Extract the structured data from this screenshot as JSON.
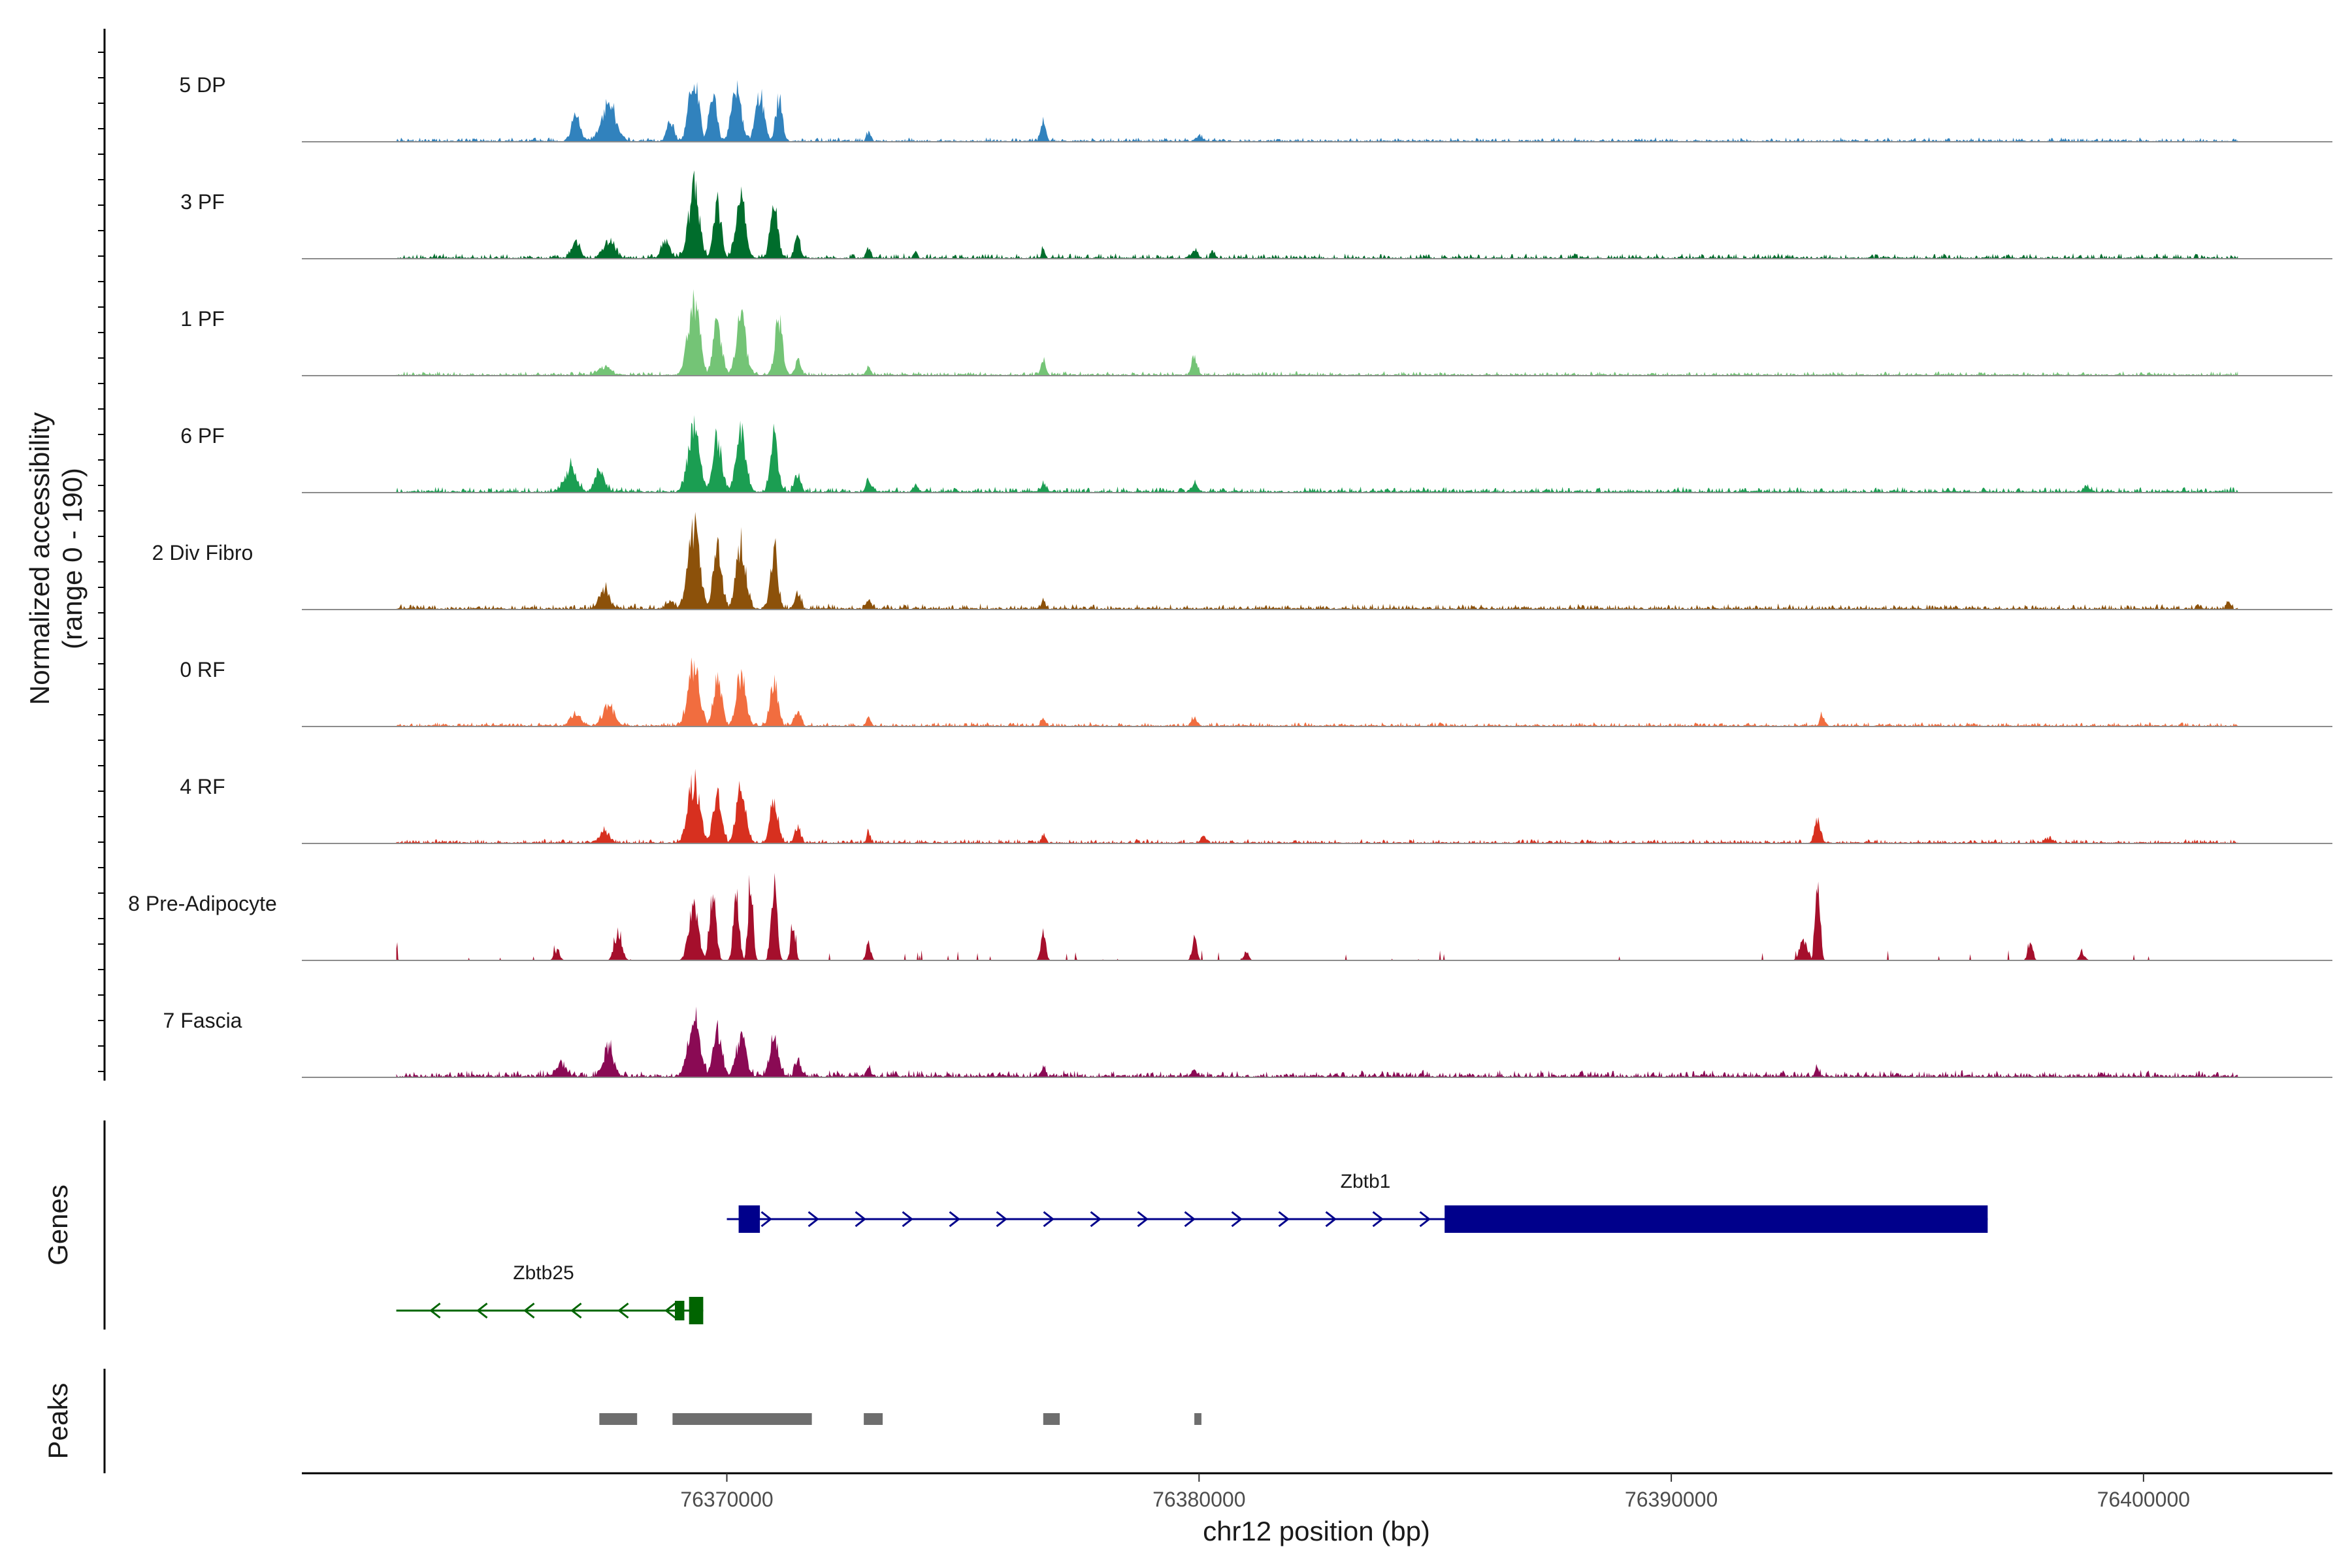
{
  "chart_data": {
    "type": "area",
    "title": "",
    "region": {
      "chromosome": "chr12",
      "start": 76361000,
      "end": 76404000
    },
    "ylabel": "Normalized accessibility",
    "ylabel_range": "(range 0 - 190)",
    "ylim": [
      0,
      190
    ],
    "xlabel": "chr12 position (bp)",
    "xticks": [
      {
        "value": 76370000,
        "label": "76370000"
      },
      {
        "value": 76380000,
        "label": "76380000"
      },
      {
        "value": 76390000,
        "label": "76390000"
      },
      {
        "value": 76400000,
        "label": "76400000"
      }
    ],
    "panel_labels": {
      "genes": "Genes",
      "peaks": "Peaks"
    },
    "signal_start": 76363000,
    "signal_end": 76402000,
    "tracks": [
      {
        "name": "5 DP",
        "color": "#3182bd",
        "peaks": [
          [
            76366800,
            0.32,
            90
          ],
          [
            76367500,
            0.45,
            150
          ],
          [
            76368800,
            0.25,
            70
          ],
          [
            76369300,
            0.82,
            100
          ],
          [
            76369700,
            0.6,
            80
          ],
          [
            76370200,
            0.68,
            100
          ],
          [
            76370700,
            0.58,
            90
          ],
          [
            76371100,
            0.52,
            70
          ],
          [
            76373000,
            0.1,
            40
          ],
          [
            76376700,
            0.25,
            50
          ],
          [
            76380000,
            0.06,
            60
          ]
        ],
        "base": 0.03,
        "noise": 0.03
      },
      {
        "name": "3 PF",
        "color": "#006d2c",
        "peaks": [
          [
            76366800,
            0.2,
            90
          ],
          [
            76367500,
            0.22,
            120
          ],
          [
            76368700,
            0.2,
            90
          ],
          [
            76369300,
            0.85,
            110
          ],
          [
            76369800,
            0.65,
            80
          ],
          [
            76370300,
            0.72,
            100
          ],
          [
            76371000,
            0.6,
            80
          ],
          [
            76371500,
            0.25,
            60
          ],
          [
            76373000,
            0.12,
            50
          ],
          [
            76374000,
            0.07,
            40
          ],
          [
            76376700,
            0.1,
            40
          ],
          [
            76379900,
            0.12,
            60
          ],
          [
            76380300,
            0.08,
            40
          ]
        ],
        "base": 0.03,
        "noise": 0.04
      },
      {
        "name": "1 PF",
        "color": "#74c476",
        "peaks": [
          [
            76367400,
            0.1,
            120
          ],
          [
            76369300,
            0.92,
            120
          ],
          [
            76369800,
            0.62,
            90
          ],
          [
            76370300,
            0.7,
            100
          ],
          [
            76371100,
            0.65,
            80
          ],
          [
            76371500,
            0.18,
            60
          ],
          [
            76373000,
            0.08,
            50
          ],
          [
            76376700,
            0.16,
            50
          ],
          [
            76379900,
            0.22,
            60
          ]
        ],
        "base": 0.03,
        "noise": 0.03
      },
      {
        "name": "6 PF",
        "color": "#1b9e52",
        "peaks": [
          [
            76366700,
            0.3,
            120
          ],
          [
            76367300,
            0.25,
            100
          ],
          [
            76369300,
            0.78,
            120
          ],
          [
            76369800,
            0.62,
            90
          ],
          [
            76370300,
            0.72,
            100
          ],
          [
            76371000,
            0.65,
            80
          ],
          [
            76371500,
            0.22,
            60
          ],
          [
            76373000,
            0.12,
            50
          ],
          [
            76374000,
            0.08,
            40
          ],
          [
            76376700,
            0.1,
            40
          ],
          [
            76379900,
            0.1,
            60
          ],
          [
            76398800,
            0.07,
            60
          ]
        ],
        "base": 0.04,
        "noise": 0.04
      },
      {
        "name": "2 Div Fibro",
        "color": "#8c510a",
        "peaks": [
          [
            76367400,
            0.25,
            100
          ],
          [
            76368800,
            0.1,
            80
          ],
          [
            76369300,
            0.95,
            120
          ],
          [
            76369800,
            0.72,
            90
          ],
          [
            76370300,
            0.8,
            100
          ],
          [
            76371000,
            0.7,
            80
          ],
          [
            76371500,
            0.2,
            60
          ],
          [
            76373000,
            0.1,
            50
          ],
          [
            76376700,
            0.1,
            40
          ],
          [
            76401800,
            0.08,
            40
          ]
        ],
        "base": 0.04,
        "noise": 0.04
      },
      {
        "name": "0 RF",
        "color": "#f16d3f",
        "peaks": [
          [
            76366800,
            0.15,
            100
          ],
          [
            76367500,
            0.25,
            120
          ],
          [
            76369300,
            0.72,
            120
          ],
          [
            76369800,
            0.55,
            90
          ],
          [
            76370300,
            0.62,
            100
          ],
          [
            76371000,
            0.55,
            80
          ],
          [
            76371500,
            0.18,
            60
          ],
          [
            76373000,
            0.1,
            50
          ],
          [
            76376700,
            0.1,
            40
          ],
          [
            76379900,
            0.1,
            60
          ],
          [
            76393200,
            0.12,
            50
          ]
        ],
        "base": 0.03,
        "noise": 0.03
      },
      {
        "name": "4 RF",
        "color": "#d7301f",
        "peaks": [
          [
            76367400,
            0.14,
            100
          ],
          [
            76369300,
            0.75,
            120
          ],
          [
            76369800,
            0.58,
            90
          ],
          [
            76370300,
            0.65,
            100
          ],
          [
            76371000,
            0.58,
            80
          ],
          [
            76371500,
            0.2,
            60
          ],
          [
            76373000,
            0.12,
            40
          ],
          [
            76376700,
            0.1,
            40
          ],
          [
            76380100,
            0.08,
            60
          ],
          [
            76393100,
            0.3,
            60
          ],
          [
            76398000,
            0.05,
            80
          ]
        ],
        "base": 0.03,
        "noise": 0.03
      },
      {
        "name": "8 Pre-Adipocyte",
        "color": "#a50f2c",
        "peaks": [
          [
            76363000,
            0.15,
            20
          ],
          [
            76366400,
            0.12,
            60
          ],
          [
            76367700,
            0.35,
            80
          ],
          [
            76369300,
            0.7,
            100
          ],
          [
            76369700,
            0.8,
            70
          ],
          [
            76370200,
            0.75,
            60
          ],
          [
            76370500,
            0.98,
            50
          ],
          [
            76371000,
            0.85,
            60
          ],
          [
            76371400,
            0.4,
            50
          ],
          [
            76373000,
            0.2,
            50
          ],
          [
            76376700,
            0.35,
            50
          ],
          [
            76379900,
            0.28,
            50
          ],
          [
            76381000,
            0.1,
            50
          ],
          [
            76392800,
            0.25,
            80
          ],
          [
            76393100,
            0.95,
            50
          ],
          [
            76397600,
            0.22,
            50
          ],
          [
            76398700,
            0.08,
            60
          ]
        ],
        "base": 0.0,
        "noise": 0.1
      },
      {
        "name": "7 Fascia",
        "color": "#8a0a54",
        "peaks": [
          [
            76366500,
            0.15,
            100
          ],
          [
            76367500,
            0.35,
            100
          ],
          [
            76369300,
            0.72,
            120
          ],
          [
            76369800,
            0.55,
            90
          ],
          [
            76370300,
            0.5,
            100
          ],
          [
            76371000,
            0.52,
            80
          ],
          [
            76371500,
            0.2,
            60
          ],
          [
            76373000,
            0.1,
            50
          ],
          [
            76376700,
            0.14,
            40
          ],
          [
            76379900,
            0.08,
            60
          ],
          [
            76393100,
            0.08,
            40
          ]
        ],
        "base": 0.05,
        "noise": 0.05
      }
    ],
    "genes": [
      {
        "name": "Zbtb1",
        "strand": "+",
        "color": "#00008b",
        "start": 76370000,
        "end": 76396700,
        "exons": [
          [
            76370000,
            76370250
          ],
          [
            76370250,
            76370700
          ],
          [
            76385200,
            76396700
          ]
        ]
      },
      {
        "name": "Zbtb25",
        "strand": "-",
        "color": "#006400",
        "start": 76363000,
        "end": 76369500,
        "exons": [
          [
            76368900,
            76369100
          ],
          [
            76369200,
            76369500
          ]
        ]
      }
    ],
    "peak_regions": [
      [
        76367300,
        76368100
      ],
      [
        76368850,
        76371800
      ],
      [
        76372900,
        76373300
      ],
      [
        76376700,
        76377050
      ],
      [
        76379900,
        76380050
      ]
    ]
  }
}
